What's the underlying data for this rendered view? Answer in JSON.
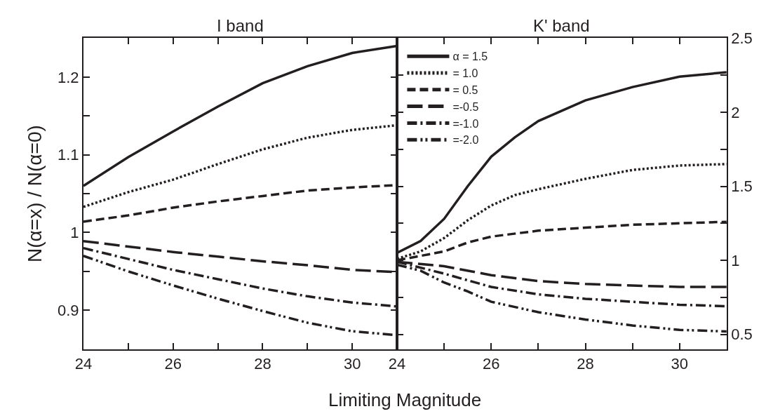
{
  "chart_data": [
    {
      "type": "line",
      "title": "I band",
      "xlabel": "Limiting Magnitude",
      "ylabel": "N(α=x) / N(α=0)",
      "x": [
        24,
        25,
        26,
        27,
        28,
        29,
        30,
        31
      ],
      "xlim": [
        24,
        31
      ],
      "xticks": [
        24,
        {
          "value": 25,
          "label": null
        },
        26,
        {
          "value": 27,
          "label": null
        },
        28,
        {
          "value": 29,
          "label": null
        },
        30,
        {
          "value": 31,
          "label": null
        }
      ],
      "ylim": [
        0.85,
        1.25
      ],
      "yticks": [
        {
          "value": 0.85,
          "label": null
        },
        0.9,
        {
          "value": 0.95,
          "label": null
        },
        {
          "value": 1.0,
          "label": "1"
        },
        {
          "value": 1.05,
          "label": null
        },
        1.1,
        {
          "value": 1.15,
          "label": null
        },
        1.2,
        {
          "value": 1.25,
          "label": null
        }
      ],
      "legend": false,
      "marker": "none",
      "series": [
        {
          "color": "#231f20",
          "line_style": "solid",
          "values": [
            1.06,
            1.097,
            1.13,
            1.162,
            1.192,
            1.214,
            1.231,
            1.24
          ]
        },
        {
          "color": "#231f20",
          "line_style": "dotted",
          "values": [
            1.033,
            1.052,
            1.068,
            1.088,
            1.107,
            1.122,
            1.132,
            1.138
          ]
        },
        {
          "color": "#231f20",
          "line_style": "dashed",
          "values": [
            1.014,
            1.022,
            1.032,
            1.04,
            1.047,
            1.054,
            1.058,
            1.061
          ]
        },
        {
          "color": "#231f20",
          "line_style": "longdash",
          "values": [
            0.989,
            0.982,
            0.975,
            0.969,
            0.963,
            0.958,
            0.952,
            0.949
          ]
        },
        {
          "color": "#231f20",
          "line_style": "dashdot",
          "values": [
            0.98,
            0.966,
            0.952,
            0.94,
            0.928,
            0.918,
            0.91,
            0.905
          ]
        },
        {
          "color": "#231f20",
          "line_style": "dashdotdot",
          "values": [
            0.97,
            0.95,
            0.932,
            0.915,
            0.899,
            0.884,
            0.873,
            0.868
          ]
        }
      ]
    },
    {
      "type": "line",
      "title": "K' band",
      "xlim": [
        24,
        31
      ],
      "xticks": [
        24,
        {
          "value": 25,
          "label": null
        },
        26,
        {
          "value": 27,
          "label": null
        },
        28,
        {
          "value": 29,
          "label": null
        },
        30,
        {
          "value": 31,
          "label": null
        }
      ],
      "ylim": [
        0.4,
        2.5
      ],
      "yticks": [
        0.5,
        {
          "value": 0.75,
          "label": null
        },
        1,
        {
          "value": 1.25,
          "label": null
        },
        1.5,
        {
          "value": 1.75,
          "label": null
        },
        2,
        {
          "value": 2.25,
          "label": null
        },
        2.5
      ],
      "legend": "top left",
      "marker": "none",
      "series": [
        {
          "name": "α = 1.5",
          "color": "#231f20",
          "line_style": "solid",
          "x": [
            24,
            24.5,
            25,
            25.5,
            26,
            26.5,
            27,
            28,
            29,
            30,
            31
          ],
          "values": [
            1.05,
            1.13,
            1.28,
            1.5,
            1.7,
            1.83,
            1.94,
            2.08,
            2.17,
            2.24,
            2.27
          ]
        },
        {
          "name": "= 1.0",
          "color": "#231f20",
          "line_style": "dotted",
          "x": [
            24,
            24.5,
            25,
            25.5,
            26,
            26.5,
            27,
            28,
            29,
            30,
            31
          ],
          "values": [
            1.01,
            1.06,
            1.15,
            1.27,
            1.37,
            1.44,
            1.48,
            1.55,
            1.61,
            1.64,
            1.65
          ]
        },
        {
          "name": "= 0.5",
          "color": "#231f20",
          "line_style": "dashed",
          "x": [
            24,
            24.5,
            25,
            25.5,
            26,
            27,
            28,
            29,
            30,
            31
          ],
          "values": [
            1.0,
            1.03,
            1.06,
            1.12,
            1.16,
            1.2,
            1.22,
            1.24,
            1.25,
            1.26
          ]
        },
        {
          "name": "=-0.5",
          "color": "#231f20",
          "line_style": "longdash",
          "x": [
            24,
            25,
            26,
            27,
            28,
            29,
            30,
            31
          ],
          "values": [
            0.99,
            0.96,
            0.9,
            0.86,
            0.84,
            0.83,
            0.82,
            0.82
          ]
        },
        {
          "name": "=-1.0",
          "color": "#231f20",
          "line_style": "dashdot",
          "x": [
            24,
            25,
            26,
            27,
            28,
            29,
            30,
            31
          ],
          "values": [
            0.99,
            0.91,
            0.82,
            0.77,
            0.74,
            0.72,
            0.7,
            0.69
          ]
        },
        {
          "name": "=-2.0",
          "color": "#231f20",
          "line_style": "dashdotdot",
          "x": [
            24,
            24.5,
            25,
            25.5,
            26,
            27,
            28,
            29,
            30,
            31
          ],
          "values": [
            0.97,
            0.93,
            0.85,
            0.79,
            0.72,
            0.65,
            0.6,
            0.56,
            0.53,
            0.52
          ]
        }
      ]
    }
  ]
}
